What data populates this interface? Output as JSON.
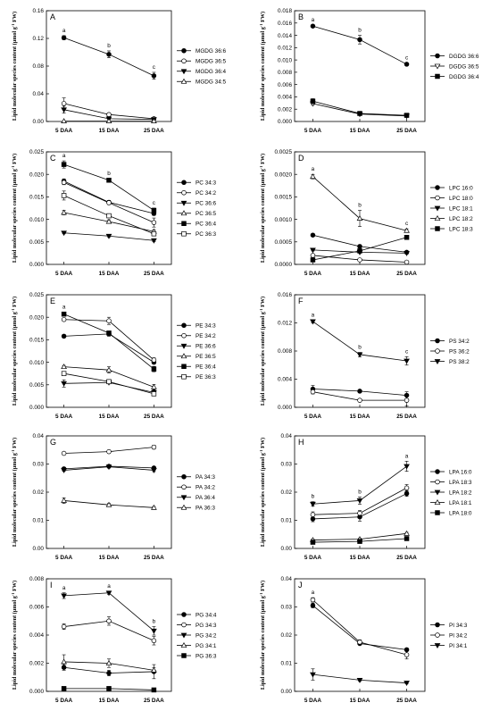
{
  "ylabel": "Lipid molecular species content (μmol g",
  "ylabel_sup": "-1",
  "ylabel_end": " FW)",
  "chart_data": [
    {
      "panel": "A",
      "type": "line",
      "x": [
        "5 DAA",
        "15 DAA",
        "25 DAA"
      ],
      "ylim": [
        0,
        0.16
      ],
      "yticks": [
        "0.00",
        "0.04",
        "0.08",
        "0.12",
        "0.16"
      ],
      "series": [
        {
          "name": "MGDG 36:6",
          "marker": "circle-filled",
          "values": [
            0.121,
            0.097,
            0.066
          ],
          "err": [
            0.003,
            0.005,
            0.005
          ],
          "sig": [
            "a",
            "b",
            "c"
          ]
        },
        {
          "name": "MGDG 36:5",
          "marker": "circle-open",
          "values": [
            0.026,
            0.01,
            0.004
          ],
          "err": [
            0.008,
            0.002,
            0.001
          ]
        },
        {
          "name": "MGDG 36:4",
          "marker": "tri-down-filled",
          "values": [
            0.017,
            0.004,
            0.003
          ],
          "err": [
            0.005,
            0.001,
            0.001
          ]
        },
        {
          "name": "MGDG 34:5",
          "marker": "tri-up-open",
          "values": [
            0.0005,
            0.0005,
            0.0005
          ],
          "err": [
            0,
            0,
            0
          ]
        }
      ]
    },
    {
      "panel": "B",
      "type": "line",
      "x": [
        "5 DAA",
        "15 DAA",
        "25 DAA"
      ],
      "ylim": [
        0,
        0.018
      ],
      "yticks": [
        "0.000",
        "0.002",
        "0.004",
        "0.006",
        "0.008",
        "0.010",
        "0.012",
        "0.014",
        "0.016",
        "0.018"
      ],
      "series": [
        {
          "name": "DGDG 36:6",
          "marker": "circle-filled",
          "values": [
            0.0155,
            0.0133,
            0.0093
          ],
          "err": [
            0.0002,
            0.0007,
            0.0002
          ],
          "sig": [
            "a",
            "b",
            "c"
          ]
        },
        {
          "name": "DGDG 36:5",
          "marker": "tri-down-open",
          "values": [
            0.0029,
            0.0012,
            0.0009
          ],
          "err": [
            0.0002,
            0.0001,
            0.0001
          ]
        },
        {
          "name": "DGDG 36:4",
          "marker": "square-filled",
          "values": [
            0.0033,
            0.0013,
            0.001
          ],
          "err": [
            0.0004,
            0.0001,
            0.0001
          ]
        }
      ]
    },
    {
      "panel": "C",
      "type": "line",
      "x": [
        "5 DAA",
        "15 DAA",
        "25 DAA"
      ],
      "ylim": [
        0,
        0.025
      ],
      "yticks": [
        "0.000",
        "0.005",
        "0.010",
        "0.015",
        "0.020",
        "0.025"
      ],
      "series": [
        {
          "name": "PC 34:3",
          "marker": "circle-filled",
          "values": [
            0.0185,
            0.0138,
            0.0113
          ],
          "err": [
            0.0005,
            0.0004,
            0.0004
          ]
        },
        {
          "name": "PC 34:2",
          "marker": "circle-open",
          "values": [
            0.0182,
            0.0137,
            0.0093
          ],
          "err": [
            0.0005,
            0.0004,
            0.001
          ]
        },
        {
          "name": "PC 36:6",
          "marker": "tri-down-filled",
          "values": [
            0.007,
            0.0063,
            0.0053
          ],
          "err": [
            0.0002,
            0.0002,
            0.0002
          ]
        },
        {
          "name": "PC 36:5",
          "marker": "tri-up-open",
          "values": [
            0.0115,
            0.0095,
            0.0073
          ],
          "err": [
            0.0005,
            0.0004,
            0.0004
          ]
        },
        {
          "name": "PC 36:4",
          "marker": "square-filled",
          "values": [
            0.0222,
            0.0187,
            0.012
          ],
          "err": [
            0.0008,
            0.0003,
            0.0005
          ],
          "sig": [
            "a",
            "b",
            "c"
          ]
        },
        {
          "name": "PC 36:3",
          "marker": "square-open",
          "values": [
            0.0153,
            0.0108,
            0.0068
          ],
          "err": [
            0.001,
            0.0004,
            0.0004
          ]
        }
      ]
    },
    {
      "panel": "D",
      "type": "line",
      "x": [
        "5 DAA",
        "15 DAA",
        "25 DAA"
      ],
      "ylim": [
        0,
        0.0025
      ],
      "yticks": [
        "0.0000",
        "0.0005",
        "0.0010",
        "0.0015",
        "0.0020",
        "0.0025"
      ],
      "series": [
        {
          "name": "LPC 16:0",
          "marker": "circle-filled",
          "values": [
            0.00065,
            0.0004,
            0.00027
          ],
          "err": [
            3e-05,
            3e-05,
            2e-05
          ]
        },
        {
          "name": "LPC 18:0",
          "marker": "circle-open",
          "values": [
            0.0002,
            0.0001,
            5e-05
          ],
          "err": [
            2e-05,
            1e-05,
            1e-05
          ]
        },
        {
          "name": "LPC 18:1",
          "marker": "tri-down-filled",
          "values": [
            0.00032,
            0.00027,
            0.00025
          ],
          "err": [
            2e-05,
            2e-05,
            2e-05
          ]
        },
        {
          "name": "LPC 18:2",
          "marker": "tri-up-open",
          "values": [
            0.00195,
            0.00102,
            0.00075
          ],
          "err": [
            5e-05,
            0.00018,
            4e-05
          ],
          "sig": [
            "a",
            "b",
            "c"
          ]
        },
        {
          "name": "LPC 18:3",
          "marker": "square-filled",
          "values": [
            0.0001,
            0.0003,
            0.0006
          ],
          "err": [
            2e-05,
            2e-05,
            3e-05
          ]
        }
      ]
    },
    {
      "panel": "E",
      "type": "line",
      "x": [
        "5 DAA",
        "15 DAA",
        "25 DAA"
      ],
      "ylim": [
        0,
        0.025
      ],
      "yticks": [
        "0.000",
        "0.005",
        "0.010",
        "0.015",
        "0.020",
        "0.025"
      ],
      "series": [
        {
          "name": "PE 34:3",
          "marker": "circle-filled",
          "values": [
            0.0158,
            0.0163,
            0.01
          ],
          "err": [
            0.0003,
            0.0005,
            0.0004
          ]
        },
        {
          "name": "PE 34:2",
          "marker": "circle-open",
          "values": [
            0.0195,
            0.0192,
            0.0105
          ],
          "err": [
            0.0003,
            0.0008,
            0.0005
          ]
        },
        {
          "name": "PE 36:6",
          "marker": "tri-down-filled",
          "values": [
            0.0053,
            0.0055,
            0.0033
          ],
          "err": [
            0.0008,
            0.0003,
            0.0005
          ]
        },
        {
          "name": "PE 36:5",
          "marker": "tri-up-open",
          "values": [
            0.009,
            0.0083,
            0.0045
          ],
          "err": [
            0.0003,
            0.0007,
            0.0006
          ]
        },
        {
          "name": "PE 36:4",
          "marker": "square-filled",
          "values": [
            0.0207,
            0.0165,
            0.0085
          ],
          "err": [
            0.0004,
            0.0004,
            0.0006
          ],
          "sig": [
            "a"
          ]
        },
        {
          "name": "PE 36:3",
          "marker": "square-open",
          "values": [
            0.0075,
            0.0057,
            0.003
          ],
          "err": [
            0.0003,
            0.0003,
            0.0003
          ]
        }
      ]
    },
    {
      "panel": "F",
      "type": "line",
      "x": [
        "5 DAA",
        "15 DAA",
        "25 DAA"
      ],
      "ylim": [
        0,
        0.016
      ],
      "yticks": [
        "0.000",
        "0.004",
        "0.008",
        "0.012",
        "0.016"
      ],
      "series": [
        {
          "name": "PS 34:2",
          "marker": "circle-filled",
          "values": [
            0.0026,
            0.0023,
            0.0017
          ],
          "err": [
            0.0005,
            0.0002,
            0.0005
          ]
        },
        {
          "name": "PS 36:2",
          "marker": "circle-open",
          "values": [
            0.0022,
            0.001,
            0.001
          ],
          "err": [
            0.0003,
            0.0002,
            0.0008
          ]
        },
        {
          "name": "PS 38:2",
          "marker": "tri-down-filled",
          "values": [
            0.0122,
            0.0075,
            0.0066
          ],
          "err": [
            0.0002,
            0.0003,
            0.0006
          ],
          "sig": [
            "a",
            "b",
            "c"
          ]
        }
      ]
    },
    {
      "panel": "G",
      "type": "line",
      "x": [
        "5 DAA",
        "15 DAA",
        "25 DAA"
      ],
      "ylim": [
        0,
        0.04
      ],
      "yticks": [
        "0.00",
        "0.01",
        "0.02",
        "0.03",
        "0.04"
      ],
      "series": [
        {
          "name": "PA 34:3",
          "marker": "circle-filled",
          "values": [
            0.0283,
            0.0292,
            0.0286
          ],
          "err": [
            0.0005,
            0.0005,
            0.0005
          ]
        },
        {
          "name": "PA 34:2",
          "marker": "circle-open",
          "values": [
            0.0338,
            0.0344,
            0.036
          ],
          "err": [
            0.0005,
            0.0005,
            0.0007
          ]
        },
        {
          "name": "PA 36:4",
          "marker": "tri-down-filled",
          "values": [
            0.0278,
            0.029,
            0.0278
          ],
          "err": [
            0.0004,
            0.0004,
            0.0005
          ]
        },
        {
          "name": "PA 36:3",
          "marker": "tri-up-open",
          "values": [
            0.017,
            0.0155,
            0.0145
          ],
          "err": [
            0.001,
            0.0005,
            0.0004
          ]
        }
      ]
    },
    {
      "panel": "H",
      "type": "line",
      "x": [
        "5 DAA",
        "15 DAA",
        "25 DAA"
      ],
      "ylim": [
        0,
        0.04
      ],
      "yticks": [
        "0.00",
        "0.01",
        "0.02",
        "0.03",
        "0.04"
      ],
      "series": [
        {
          "name": "LPA 16:0",
          "marker": "circle-filled",
          "values": [
            0.0105,
            0.0112,
            0.0195
          ],
          "err": [
            0.001,
            0.0015,
            0.001
          ]
        },
        {
          "name": "LPA 18:3",
          "marker": "circle-open",
          "values": [
            0.012,
            0.0125,
            0.0215
          ],
          "err": [
            0.001,
            0.001,
            0.0012
          ]
        },
        {
          "name": "LPA 18:2",
          "marker": "tri-down-filled",
          "values": [
            0.0158,
            0.017,
            0.0292
          ],
          "err": [
            0.0008,
            0.0013,
            0.0018
          ],
          "sig": [
            "b",
            "b",
            "a"
          ]
        },
        {
          "name": "LPA 18:1",
          "marker": "tri-up-open",
          "values": [
            0.003,
            0.0033,
            0.0053
          ],
          "err": [
            0.0003,
            0.0003,
            0.0004
          ]
        },
        {
          "name": "LPA 18:0",
          "marker": "square-filled",
          "values": [
            0.0022,
            0.0025,
            0.0035
          ],
          "err": [
            0.0002,
            0.0002,
            0.0003
          ]
        }
      ]
    },
    {
      "panel": "I",
      "type": "line",
      "x": [
        "5 DAA",
        "15 DAA",
        "25 DAA"
      ],
      "ylim": [
        0,
        0.008
      ],
      "yticks": [
        "0.000",
        "0.002",
        "0.004",
        "0.006",
        "0.008"
      ],
      "series": [
        {
          "name": "PG 34:4",
          "marker": "circle-filled",
          "values": [
            0.0017,
            0.0013,
            0.0014
          ],
          "err": [
            0.0002,
            0.0002,
            0.0005
          ]
        },
        {
          "name": "PG 34:3",
          "marker": "circle-open",
          "values": [
            0.0046,
            0.005,
            0.0036
          ],
          "err": [
            0.0002,
            0.0003,
            0.0003
          ]
        },
        {
          "name": "PG 34:2",
          "marker": "tri-down-filled",
          "values": [
            0.0068,
            0.007,
            0.0043
          ],
          "err": [
            0.0002,
            0.0001,
            0.0003
          ],
          "sig": [
            "a",
            "a",
            "b"
          ]
        },
        {
          "name": "PG 34:1",
          "marker": "tri-up-open",
          "values": [
            0.0021,
            0.002,
            0.0015
          ],
          "err": [
            0.0005,
            0.0003,
            0.0002
          ]
        },
        {
          "name": "PG 36:3",
          "marker": "square-filled",
          "values": [
            0.0002,
            0.0002,
            0.0001
          ],
          "err": [
            3e-05,
            3e-05,
            2e-05
          ]
        }
      ]
    },
    {
      "panel": "J",
      "type": "line",
      "x": [
        "5 DAA",
        "15 DAA",
        "25 DAA"
      ],
      "ylim": [
        0,
        0.04
      ],
      "yticks": [
        "0.00",
        "0.01",
        "0.02",
        "0.03",
        "0.04"
      ],
      "series": [
        {
          "name": "PI 34:3",
          "marker": "circle-filled",
          "values": [
            0.0305,
            0.017,
            0.0148
          ],
          "err": [
            0.0008,
            0.0005,
            0.0005
          ]
        },
        {
          "name": "PI 34:2",
          "marker": "circle-open",
          "values": [
            0.0325,
            0.0175,
            0.013
          ],
          "err": [
            0.0008,
            0.0008,
            0.0015
          ],
          "sig": [
            "a"
          ]
        },
        {
          "name": "PI 34:1",
          "marker": "tri-down-filled",
          "values": [
            0.006,
            0.004,
            0.003
          ],
          "err": [
            0.002,
            0.0004,
            0.0003
          ]
        }
      ]
    }
  ]
}
